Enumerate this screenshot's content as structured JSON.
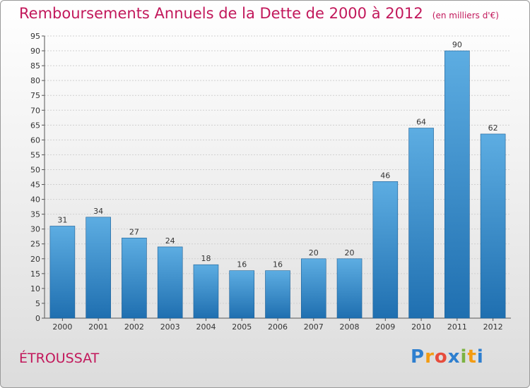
{
  "chart_data": {
    "type": "bar",
    "title": "Remboursements Annuels de la Dette de 2000 à 2012",
    "unit_label": "(en milliers d'€)",
    "categories": [
      "2000",
      "2001",
      "2002",
      "2003",
      "2004",
      "2005",
      "2006",
      "2007",
      "2008",
      "2009",
      "2010",
      "2011",
      "2012"
    ],
    "values": [
      31,
      34,
      27,
      24,
      18,
      16,
      16,
      20,
      20,
      46,
      64,
      90,
      62
    ],
    "ylim": [
      0,
      95
    ],
    "yticks": [
      0,
      5,
      10,
      15,
      20,
      25,
      30,
      35,
      40,
      45,
      50,
      55,
      60,
      65,
      70,
      75,
      80,
      85,
      90,
      95
    ],
    "grid": true,
    "xlabel": "",
    "ylabel": ""
  },
  "commune": "ÉTROUSSAT",
  "logo": {
    "letters": [
      "P",
      "r",
      "o",
      "x",
      "i",
      "t",
      "i"
    ],
    "colors": [
      "#2e7fcf",
      "#f39c12",
      "#e74c3c",
      "#2e7fcf",
      "#7cb342",
      "#f39c12",
      "#2e7fcf"
    ]
  },
  "colors": {
    "title": "#c2185b",
    "bar_light": "#5dade2",
    "bar_dark": "#1f6fb0"
  }
}
